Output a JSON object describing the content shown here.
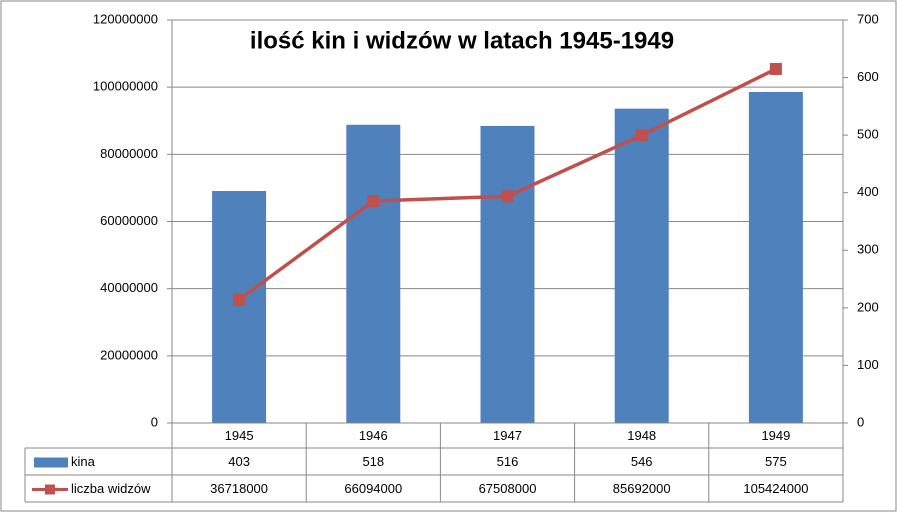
{
  "chart_data": {
    "type": "bar_line",
    "title": "ilość kin i widzów w latach 1945-1949",
    "categories": [
      "1945",
      "1946",
      "1947",
      "1948",
      "1949"
    ],
    "series": [
      {
        "name": "kina",
        "type": "bar",
        "color": "#4f81bd",
        "axis": "y2",
        "values": [
          403,
          518,
          516,
          546,
          575
        ]
      },
      {
        "name": "liczba widzów",
        "type": "line",
        "color": "#c0504d",
        "axis": "y",
        "values": [
          36718000,
          66094000,
          67508000,
          85692000,
          105424000
        ]
      }
    ],
    "ylim": [
      0,
      120000000
    ],
    "yticks": [
      0,
      20000000,
      40000000,
      60000000,
      80000000,
      100000000,
      120000000
    ],
    "y2lim": [
      0,
      700
    ],
    "y2ticks": [
      0,
      100,
      200,
      300,
      400,
      500,
      600,
      700
    ],
    "grid": true,
    "data_table": true
  }
}
